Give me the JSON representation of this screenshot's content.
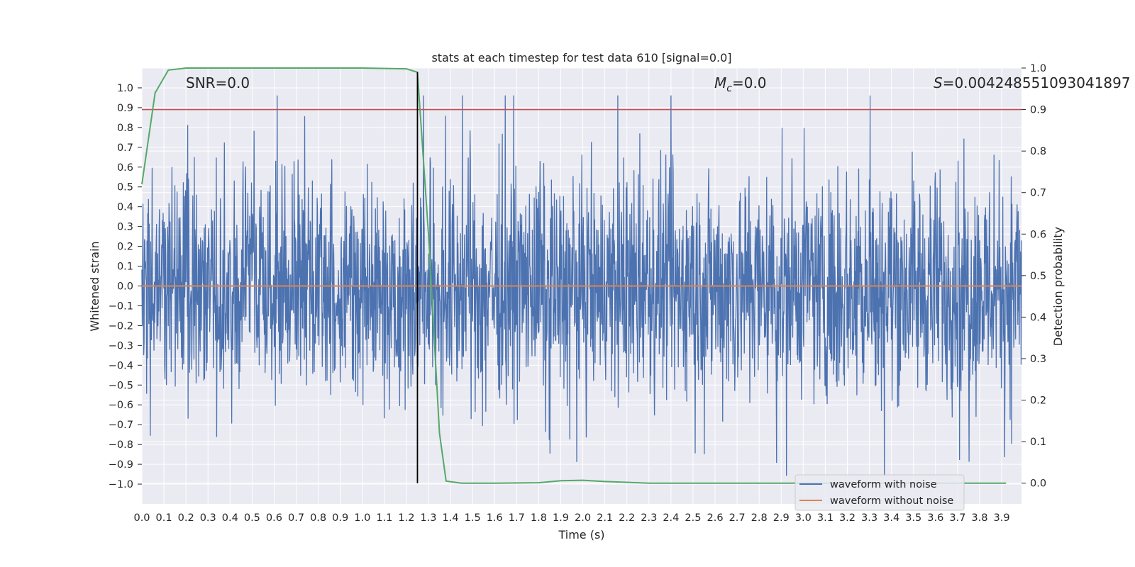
{
  "chart_data": {
    "type": "line",
    "title": "stats at each timestep for test data 610 [signal=0.0]",
    "xlabel": "Time (s)",
    "ylabel": "Whitened strain",
    "y2label": "Detection probability",
    "xlim": [
      0.0,
      3.99
    ],
    "ylim": [
      -1.1,
      1.1
    ],
    "y2lim": [
      -0.05,
      1.0
    ],
    "x_ticks": [
      "0.0",
      "0.1",
      "0.2",
      "0.3",
      "0.4",
      "0.5",
      "0.6",
      "0.7",
      "0.8",
      "0.9",
      "1.0",
      "1.1",
      "1.2",
      "1.3",
      "1.4",
      "1.5",
      "1.6",
      "1.7",
      "1.8",
      "1.9",
      "2.0",
      "2.1",
      "2.2",
      "2.3",
      "2.4",
      "2.5",
      "2.6",
      "2.7",
      "2.8",
      "2.9",
      "3.0",
      "3.1",
      "3.2",
      "3.3",
      "3.4",
      "3.5",
      "3.6",
      "3.7",
      "3.8",
      "3.9"
    ],
    "y_ticks": [
      "1.0",
      "0.9",
      "0.8",
      "0.7",
      "0.6",
      "0.5",
      "0.4",
      "0.3",
      "0.2",
      "0.1",
      "0.0",
      "−0.1",
      "−0.2",
      "−0.3",
      "−0.4",
      "−0.5",
      "−0.6",
      "−0.7",
      "−0.8",
      "−0.9",
      "−1.0"
    ],
    "y2_ticks": [
      "1.0",
      "0.9",
      "0.8",
      "0.7",
      "0.6",
      "0.5",
      "0.4",
      "0.3",
      "0.2",
      "0.1",
      "0.0"
    ],
    "annotations": {
      "snr": "SNR=0.0",
      "mc_symbol": "M",
      "mc_sub": "c",
      "mc_value": "=0.0",
      "s_symbol": "S",
      "s_value": "=0.004248551093041897"
    },
    "series": [
      {
        "name": "waveform with noise",
        "color": "#4c72b0",
        "axis": "left",
        "style": "dense-noise",
        "amplitude_range": [
          -1.0,
          1.0
        ]
      },
      {
        "name": "waveform without noise",
        "color": "#dd8452",
        "axis": "left",
        "x": [
          0.0,
          3.99
        ],
        "y": [
          0.0,
          0.0
        ]
      },
      {
        "name": "detection probability",
        "color": "#55a868",
        "axis": "right",
        "x": [
          0.0,
          0.06,
          0.12,
          0.2,
          0.4,
          0.8,
          1.0,
          1.2,
          1.25,
          1.3,
          1.35,
          1.38,
          1.45,
          1.6,
          1.8,
          1.9,
          2.0,
          2.1,
          2.3,
          2.6,
          3.0,
          3.5,
          3.92
        ],
        "y": [
          0.72,
          0.94,
          0.995,
          1.0,
          1.0,
          1.0,
          1.0,
          0.998,
          0.99,
          0.6,
          0.12,
          0.005,
          0.0,
          0.0,
          0.001,
          0.006,
          0.007,
          0.004,
          0.0,
          0.0,
          0.0,
          0.0,
          0.0
        ]
      },
      {
        "name": "threshold",
        "color": "#c44e52",
        "axis": "right",
        "value": 0.9
      },
      {
        "name": "detection time",
        "color": "#000000",
        "axis": "right",
        "x": 1.25,
        "y_range": [
          0.0,
          0.99
        ]
      }
    ],
    "legend": {
      "placement": "lower-right",
      "entries": [
        "waveform with noise",
        "waveform without noise"
      ]
    }
  }
}
